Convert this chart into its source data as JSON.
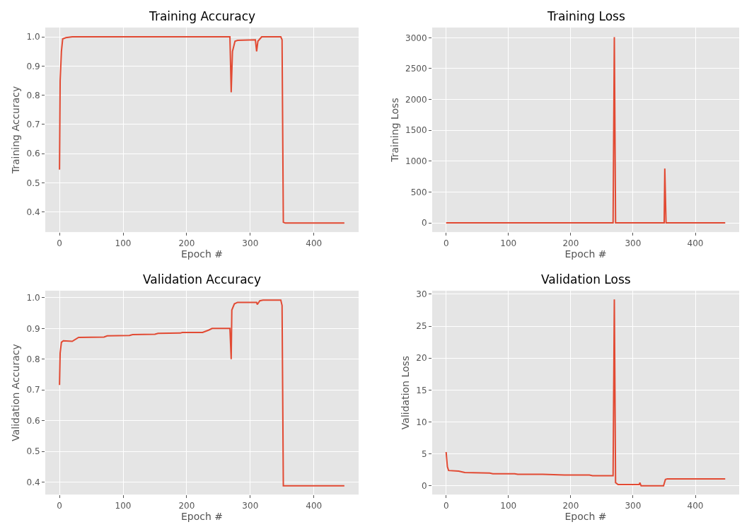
{
  "chart_data": [
    {
      "type": "line",
      "title": "Training Accuracy",
      "xlabel": "Epoch #",
      "ylabel": "Training Accuracy",
      "xlim": [
        -22.4,
        470.4
      ],
      "ylim": [
        0.331,
        1.032
      ],
      "xticks": [
        0,
        100,
        200,
        300,
        400
      ],
      "yticks": [
        {
          "value": 0.4,
          "label": "0.4"
        },
        {
          "value": 0.5,
          "label": "0.5"
        },
        {
          "value": 0.6,
          "label": "0.6"
        },
        {
          "value": 0.7,
          "label": "0.7"
        },
        {
          "value": 0.8,
          "label": "0.8"
        },
        {
          "value": 0.9,
          "label": "0.9"
        },
        {
          "value": 1.0,
          "label": "1.0"
        }
      ],
      "grid": true,
      "marker": "none",
      "line_style": "solid",
      "series": [
        {
          "color": "#e24a33",
          "x": [
            0,
            1,
            3,
            5,
            10,
            20,
            268,
            270,
            272,
            276,
            280,
            308,
            310,
            312,
            318,
            348,
            350,
            352,
            355,
            448
          ],
          "values": [
            0.545,
            0.85,
            0.95,
            0.993,
            0.997,
            1.0,
            1.0,
            0.81,
            0.95,
            0.985,
            0.988,
            0.99,
            0.95,
            0.985,
            1.0,
            1.0,
            0.99,
            0.365,
            0.362,
            0.362
          ]
        }
      ]
    },
    {
      "type": "line",
      "title": "Training Loss",
      "xlabel": "Epoch #",
      "ylabel": "Training Loss",
      "xlim": [
        -22.4,
        470.4
      ],
      "ylim": [
        -150,
        3165
      ],
      "xticks": [
        0,
        100,
        200,
        300,
        400
      ],
      "yticks": [
        0,
        500,
        1000,
        1500,
        2000,
        2500,
        3000
      ],
      "grid": true,
      "marker": "none",
      "line_style": "solid",
      "series": [
        {
          "color": "#e24a33",
          "x": [
            0,
            268,
            270,
            272,
            350,
            351,
            353,
            448
          ],
          "values": [
            0,
            0,
            3010,
            0,
            0,
            880,
            0,
            0
          ]
        }
      ]
    },
    {
      "type": "line",
      "title": "Validation Accuracy",
      "xlabel": "Epoch #",
      "ylabel": "Validation Accuracy",
      "xlim": [
        -22.4,
        470.4
      ],
      "ylim": [
        0.3595,
        1.023
      ],
      "xticks": [
        0,
        100,
        200,
        300,
        400
      ],
      "yticks": [
        {
          "value": 0.4,
          "label": "0.4"
        },
        {
          "value": 0.5,
          "label": "0.5"
        },
        {
          "value": 0.6,
          "label": "0.6"
        },
        {
          "value": 0.7,
          "label": "0.7"
        },
        {
          "value": 0.8,
          "label": "0.8"
        },
        {
          "value": 0.9,
          "label": "0.9"
        },
        {
          "value": 1.0,
          "label": "1.0"
        }
      ],
      "grid": true,
      "marker": "none",
      "line_style": "solid",
      "series": [
        {
          "color": "#e24a33",
          "x": [
            0,
            1,
            3,
            6,
            20,
            30,
            70,
            75,
            110,
            115,
            150,
            155,
            190,
            193,
            225,
            235,
            240,
            268,
            270,
            271,
            275,
            280,
            310,
            311,
            315,
            320,
            348,
            350,
            352,
            448
          ],
          "values": [
            0.716,
            0.82,
            0.855,
            0.86,
            0.858,
            0.871,
            0.872,
            0.876,
            0.877,
            0.88,
            0.881,
            0.884,
            0.885,
            0.887,
            0.887,
            0.895,
            0.9,
            0.9,
            0.8,
            0.96,
            0.98,
            0.985,
            0.985,
            0.978,
            0.99,
            0.992,
            0.992,
            0.975,
            0.388,
            0.388
          ]
        }
      ]
    },
    {
      "type": "line",
      "title": "Validation Loss",
      "xlabel": "Epoch #",
      "ylabel": "Validation Loss",
      "xlim": [
        -22.4,
        470.4
      ],
      "ylim": [
        -1.36,
        30.56
      ],
      "xticks": [
        0,
        100,
        200,
        300,
        400
      ],
      "yticks": [
        0,
        5,
        10,
        15,
        20,
        25,
        30
      ],
      "grid": true,
      "marker": "none",
      "line_style": "solid",
      "series": [
        {
          "color": "#e24a33",
          "x": [
            0,
            2,
            4,
            20,
            30,
            70,
            75,
            110,
            115,
            150,
            155,
            190,
            230,
            235,
            268,
            270,
            272,
            276,
            310,
            311,
            313,
            349,
            352,
            355,
            448
          ],
          "values": [
            5.3,
            3.0,
            2.4,
            2.3,
            2.1,
            2.0,
            1.9,
            1.9,
            1.8,
            1.8,
            1.8,
            1.7,
            1.7,
            1.6,
            1.6,
            29.2,
            0.5,
            0.2,
            0.2,
            0.5,
            0.0,
            0.0,
            1.0,
            1.1,
            1.1
          ]
        }
      ]
    }
  ]
}
